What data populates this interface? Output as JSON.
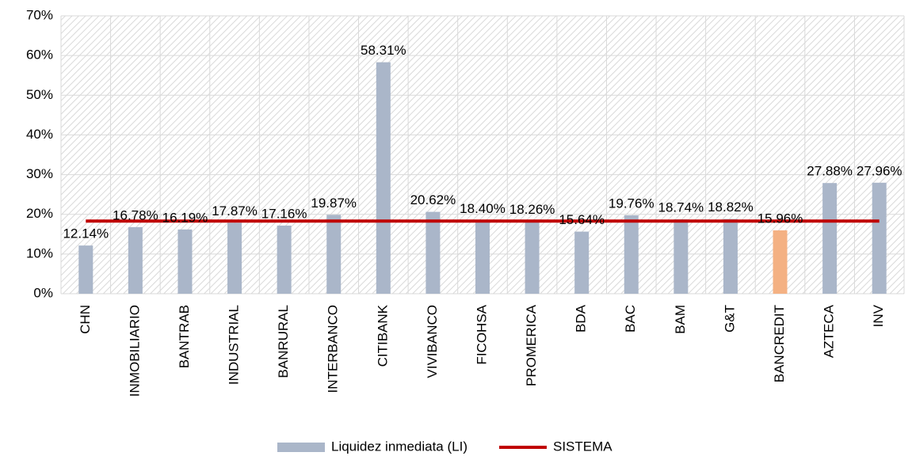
{
  "chart_data": {
    "type": "bar",
    "categories": [
      "CHN",
      "INMOBILIARIO",
      "BANTRAB",
      "INDUSTRIAL",
      "BANRURAL",
      "INTERBANCO",
      "CITIBANK",
      "VIVIBANCO",
      "FICOHSA",
      "PROMERICA",
      "BDA",
      "BAC",
      "BAM",
      "G&T",
      "BANCREDIT",
      "AZTECA",
      "INV"
    ],
    "series": [
      {
        "name": "Liquidez inmediata (LI)",
        "type": "bar",
        "color": "#aab6c9",
        "values": [
          12.14,
          16.78,
          16.19,
          17.87,
          17.16,
          19.87,
          58.31,
          20.62,
          18.4,
          18.26,
          15.64,
          19.76,
          18.74,
          18.82,
          15.96,
          27.88,
          27.96
        ],
        "value_labels": [
          "12.14%",
          "16.78%",
          "16.19%",
          "17.87%",
          "17.16%",
          "19.87%",
          "58.31%",
          "20.62%",
          "18.40%",
          "18.26%",
          "15.64%",
          "19.76%",
          "18.74%",
          "18.82%",
          "15.96%",
          "27.88%",
          "27.96%"
        ],
        "point_colors": [
          "#aab6c9",
          "#aab6c9",
          "#aab6c9",
          "#aab6c9",
          "#aab6c9",
          "#aab6c9",
          "#aab6c9",
          "#aab6c9",
          "#aab6c9",
          "#aab6c9",
          "#aab6c9",
          "#aab6c9",
          "#aab6c9",
          "#aab6c9",
          "#f4b183",
          "#aab6c9",
          "#aab6c9"
        ]
      },
      {
        "name": "SISTEMA",
        "type": "line",
        "color": "#c00000",
        "values": [
          18.3,
          18.3,
          18.3,
          18.3,
          18.3,
          18.3,
          18.3,
          18.3,
          18.3,
          18.3,
          18.3,
          18.3,
          18.3,
          18.3,
          18.3,
          18.3,
          18.3
        ]
      }
    ],
    "ylim": [
      0,
      70
    ],
    "yticks": [
      {
        "value": 0,
        "label": "0%"
      },
      {
        "value": 10,
        "label": "10%"
      },
      {
        "value": 20,
        "label": "20%"
      },
      {
        "value": 30,
        "label": "30%"
      },
      {
        "value": 40,
        "label": "40%"
      },
      {
        "value": 50,
        "label": "50%"
      },
      {
        "value": 60,
        "label": "60%"
      },
      {
        "value": 70,
        "label": "70%"
      }
    ],
    "grid": true,
    "legend": "bottom"
  }
}
